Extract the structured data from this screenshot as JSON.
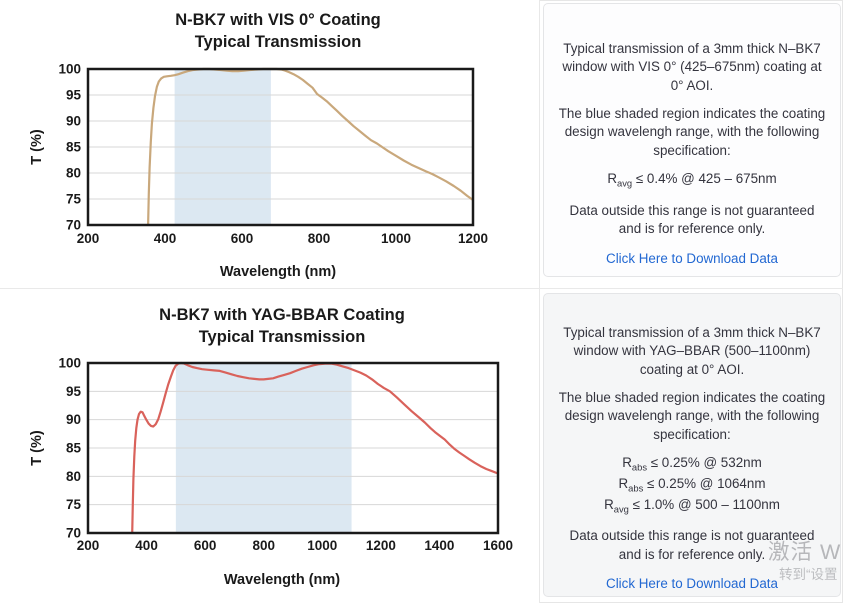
{
  "panels": [
    {
      "card": {
        "p1": "Typical transmission of a 3mm thick N–BK7 window with VIS 0° (425–675nm) coating at 0° AOI.",
        "p2": "The blue shaded region indicates the coating design wavelengh range, with the following specification:",
        "specs": [
          {
            "base": "R",
            "sub": "avg",
            "rest": " ≤ 0.4% @ 425 – 675nm"
          }
        ],
        "p3": "Data outside this range is not guaranteed and is for reference only.",
        "link": "Click Here to Download Data"
      }
    },
    {
      "card": {
        "p1": "Typical transmission of a 3mm thick N–BK7 window with YAG–BBAR (500–1100nm) coating at 0° AOI.",
        "p2": "The blue shaded region indicates the coating design wavelengh range, with the following specification:",
        "specs": [
          {
            "base": "R",
            "sub": "abs",
            "rest": " ≤ 0.25% @ 532nm"
          },
          {
            "base": "R",
            "sub": "abs",
            "rest": " ≤ 0.25% @ 1064nm"
          },
          {
            "base": "R",
            "sub": "avg",
            "rest": " ≤ 1.0% @ 500 – 1100nm"
          }
        ],
        "p3": "Data outside this range is not guaranteed and is for reference only.",
        "link": "Click Here to Download Data"
      }
    }
  ],
  "chart_data": [
    {
      "type": "line",
      "title_line1": "N-BK7 with VIS 0° Coating",
      "title_line2": "Typical Transmission",
      "xlabel": "Wavelength (nm)",
      "ylabel": "T (%)",
      "xlim": [
        200,
        1200
      ],
      "ylim": [
        70,
        100
      ],
      "xticks": [
        200,
        400,
        600,
        800,
        1000,
        1200
      ],
      "yticks": [
        70,
        75,
        80,
        85,
        90,
        95,
        100
      ],
      "grid": "horizontal",
      "shade": {
        "from": 425,
        "to": 675
      },
      "line_color": "#c9a87c",
      "shade_color": "#dce8f2",
      "series": [
        {
          "name": "Transmission",
          "points": [
            [
              356,
              70
            ],
            [
              358,
              76
            ],
            [
              360,
              81
            ],
            [
              363,
              86
            ],
            [
              366,
              89.5
            ],
            [
              370,
              92.5
            ],
            [
              374,
              94.8
            ],
            [
              379,
              96.6
            ],
            [
              384,
              97.6
            ],
            [
              390,
              98.2
            ],
            [
              397,
              98.5
            ],
            [
              405,
              98.6
            ],
            [
              415,
              98.7
            ],
            [
              425,
              98.8
            ],
            [
              435,
              99.0
            ],
            [
              447,
              99.3
            ],
            [
              460,
              99.6
            ],
            [
              472,
              99.8
            ],
            [
              485,
              99.9
            ],
            [
              500,
              100
            ],
            [
              515,
              100
            ],
            [
              530,
              99.9
            ],
            [
              545,
              99.8
            ],
            [
              560,
              99.7
            ],
            [
              575,
              99.6
            ],
            [
              590,
              99.6
            ],
            [
              605,
              99.7
            ],
            [
              620,
              99.8
            ],
            [
              638,
              99.9
            ],
            [
              655,
              100
            ],
            [
              672,
              100
            ],
            [
              690,
              100
            ],
            [
              702,
              99.9
            ],
            [
              712,
              99.7
            ],
            [
              722,
              99.4
            ],
            [
              734,
              99.0
            ],
            [
              746,
              98.5
            ],
            [
              758,
              97.9
            ],
            [
              770,
              97.2
            ],
            [
              783,
              96.4
            ],
            [
              795,
              95.2
            ],
            [
              808,
              94.5
            ],
            [
              820,
              93.8
            ],
            [
              833,
              92.9
            ],
            [
              846,
              92.0
            ],
            [
              860,
              91.0
            ],
            [
              875,
              90.0
            ],
            [
              890,
              89.0
            ],
            [
              905,
              88.1
            ],
            [
              920,
              87.2
            ],
            [
              935,
              86.3
            ],
            [
              950,
              85.7
            ],
            [
              964,
              85.0
            ],
            [
              980,
              84.2
            ],
            [
              1000,
              83.3
            ],
            [
              1020,
              82.4
            ],
            [
              1040,
              81.6
            ],
            [
              1060,
              80.9
            ],
            [
              1078,
              80.3
            ],
            [
              1094,
              79.8
            ],
            [
              1110,
              79.2
            ],
            [
              1130,
              78.4
            ],
            [
              1150,
              77.5
            ],
            [
              1168,
              76.6
            ],
            [
              1185,
              75.6
            ],
            [
              1200,
              74.8
            ]
          ]
        }
      ]
    },
    {
      "type": "line",
      "title_line1": "N-BK7 with YAG-BBAR Coating",
      "title_line2": "Typical Transmission",
      "xlabel": "Wavelength (nm)",
      "ylabel": "T (%)",
      "xlim": [
        200,
        1600
      ],
      "ylim": [
        70,
        100
      ],
      "xticks": [
        200,
        400,
        600,
        800,
        1000,
        1200,
        1400,
        1600
      ],
      "yticks": [
        70,
        75,
        80,
        85,
        90,
        95,
        100
      ],
      "grid": "horizontal",
      "shade": {
        "from": 500,
        "to": 1100
      },
      "line_color": "#d9625b",
      "shade_color": "#dce8f2",
      "series": [
        {
          "name": "Transmission",
          "points": [
            [
              351,
              70
            ],
            [
              353,
              75
            ],
            [
              355,
              79.5
            ],
            [
              358,
              83.5
            ],
            [
              361,
              86.3
            ],
            [
              365,
              88.5
            ],
            [
              369,
              90.0
            ],
            [
              374,
              91.0
            ],
            [
              380,
              91.4
            ],
            [
              386,
              91.3
            ],
            [
              392,
              90.7
            ],
            [
              399,
              90.0
            ],
            [
              407,
              89.3
            ],
            [
              415,
              88.9
            ],
            [
              423,
              88.8
            ],
            [
              431,
              89.2
            ],
            [
              440,
              90.1
            ],
            [
              448,
              91.4
            ],
            [
              456,
              92.9
            ],
            [
              465,
              94.6
            ],
            [
              474,
              96.2
            ],
            [
              483,
              97.6
            ],
            [
              491,
              98.7
            ],
            [
              499,
              99.5
            ],
            [
              508,
              99.9
            ],
            [
              518,
              100
            ],
            [
              529,
              99.9
            ],
            [
              541,
              99.6
            ],
            [
              556,
              99.3
            ],
            [
              572,
              99.1
            ],
            [
              590,
              98.9
            ],
            [
              610,
              98.8
            ],
            [
              630,
              98.7
            ],
            [
              650,
              98.6
            ],
            [
              670,
              98.3
            ],
            [
              690,
              98.0
            ],
            [
              710,
              97.7
            ],
            [
              730,
              97.5
            ],
            [
              750,
              97.3
            ],
            [
              768,
              97.2
            ],
            [
              785,
              97.1
            ],
            [
              800,
              97.1
            ],
            [
              815,
              97.2
            ],
            [
              832,
              97.3
            ],
            [
              850,
              97.6
            ],
            [
              870,
              97.9
            ],
            [
              890,
              98.2
            ],
            [
              910,
              98.6
            ],
            [
              930,
              99.0
            ],
            [
              950,
              99.3
            ],
            [
              970,
              99.6
            ],
            [
              990,
              99.8
            ],
            [
              1010,
              99.9
            ],
            [
              1030,
              99.9
            ],
            [
              1050,
              99.7
            ],
            [
              1070,
              99.4
            ],
            [
              1090,
              99.1
            ],
            [
              1110,
              98.7
            ],
            [
              1130,
              98.3
            ],
            [
              1150,
              97.8
            ],
            [
              1170,
              97.1
            ],
            [
              1190,
              96.3
            ],
            [
              1210,
              95.6
            ],
            [
              1231,
              95.0
            ],
            [
              1255,
              93.9
            ],
            [
              1280,
              92.7
            ],
            [
              1305,
              91.5
            ],
            [
              1330,
              90.4
            ],
            [
              1350,
              89.5
            ],
            [
              1370,
              88.5
            ],
            [
              1385,
              87.8
            ],
            [
              1400,
              87.2
            ],
            [
              1418,
              86.5
            ],
            [
              1435,
              85.6
            ],
            [
              1450,
              84.9
            ],
            [
              1468,
              84.2
            ],
            [
              1485,
              83.6
            ],
            [
              1502,
              83.0
            ],
            [
              1520,
              82.4
            ],
            [
              1540,
              81.8
            ],
            [
              1560,
              81.3
            ],
            [
              1580,
              80.9
            ],
            [
              1600,
              80.5
            ]
          ]
        }
      ]
    }
  ],
  "watermark": {
    "line1": "激活 W",
    "line2": "转到“设置"
  },
  "colors": {
    "chart_text": "#1a1a1a",
    "grid_line": "#d7d7d7",
    "plot_border": "#1a1a1a",
    "body_text": "#34343e",
    "link_blue": "#2268d2",
    "card_bg_bottom": "#f5f6f7",
    "shade_blue": "#dce8f2",
    "vis_curve_tan": "#c9a87c",
    "yag_curve_red": "#d9625b"
  }
}
